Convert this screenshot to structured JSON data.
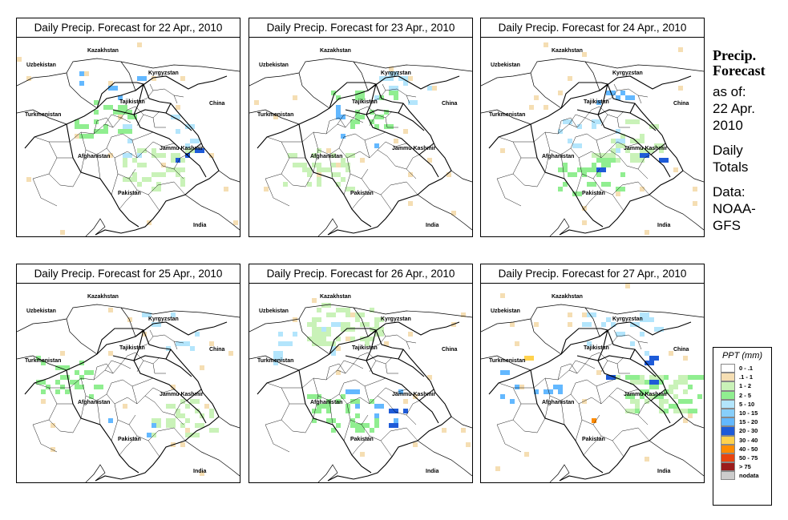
{
  "panels": [
    {
      "title": "Daily Precip. Forecast for  22 Apr., 2010",
      "seed": 11,
      "cells": [
        [
          "#c9f2b8",
          34
        ],
        [
          "#90ee90",
          22
        ],
        [
          "#b3e5fc",
          10
        ],
        [
          "#63b8ff",
          5
        ],
        [
          "#1e5bd8",
          3
        ]
      ]
    },
    {
      "title": "Daily Precip. Forecast for  23 Apr., 2010",
      "seed": 23,
      "cells": [
        [
          "#c9f2b8",
          30
        ],
        [
          "#90ee90",
          20
        ],
        [
          "#b3e5fc",
          10
        ],
        [
          "#63b8ff",
          5
        ]
      ]
    },
    {
      "title": "Daily Precip. Forecast for  24 Apr., 2010",
      "seed": 37,
      "cells": [
        [
          "#c9f2b8",
          28
        ],
        [
          "#90ee90",
          22
        ],
        [
          "#b3e5fc",
          12
        ],
        [
          "#63b8ff",
          5
        ],
        [
          "#1e5bd8",
          3
        ]
      ]
    },
    {
      "title": "Daily Precip. Forecast for  25 Apr., 2010",
      "seed": 41,
      "cells": [
        [
          "#c9f2b8",
          36
        ],
        [
          "#90ee90",
          22
        ],
        [
          "#b3e5fc",
          8
        ],
        [
          "#63b8ff",
          3
        ]
      ]
    },
    {
      "title": "Daily Precip. Forecast for  26 Apr., 2010",
      "seed": 53,
      "cells": [
        [
          "#c9f2b8",
          50
        ],
        [
          "#90ee90",
          32
        ],
        [
          "#b3e5fc",
          14
        ],
        [
          "#63b8ff",
          8
        ],
        [
          "#1e5bd8",
          4
        ]
      ]
    },
    {
      "title": "Daily Precip. Forecast for  27 Apr., 2010",
      "seed": 67,
      "cells": [
        [
          "#c9f2b8",
          34
        ],
        [
          "#90ee90",
          26
        ],
        [
          "#b3e5fc",
          16
        ],
        [
          "#63b8ff",
          8
        ],
        [
          "#1e5bd8",
          5
        ],
        [
          "#ffd24d",
          1
        ],
        [
          "#ff8c00",
          1
        ]
      ]
    }
  ],
  "map_labels": {
    "kazakhstan": "Kazakhstan",
    "uzbekistan": "Uzbekistan",
    "kyrgyzstan": "Kyrgyzstan",
    "tajikistan": "Tajikistan",
    "china": "China",
    "turkmenistan": "Turkmenistan",
    "afghanistan": "Afghanistan",
    "jammu_kashmir": "Jammu Kashmir",
    "pakistan": "Pakistan",
    "india": "India"
  },
  "sidebar": {
    "title_line1": "Precip.",
    "title_line2": "Forecast",
    "asof_1": "as of:",
    "asof_2": "22 Apr.",
    "asof_3": "2010",
    "daily_1": "Daily",
    "daily_2": "Totals",
    "data_1": "Data:",
    "data_2": "NOAA-",
    "data_3": "GFS"
  },
  "legend": {
    "title": "PPT (mm)",
    "items": [
      {
        "label": "0 - .1",
        "color": "#ffffff"
      },
      {
        "label": ".1 - 1",
        "color": "#f5deb3"
      },
      {
        "label": "1 - 2",
        "color": "#c9f2b8"
      },
      {
        "label": "2 - 5",
        "color": "#90ee90"
      },
      {
        "label": "5 - 10",
        "color": "#b3e5fc"
      },
      {
        "label": "10 - 15",
        "color": "#87cefa"
      },
      {
        "label": "15 - 20",
        "color": "#63b8ff"
      },
      {
        "label": "20 - 30",
        "color": "#1e5bd8"
      },
      {
        "label": "30 - 40",
        "color": "#ffd24d"
      },
      {
        "label": "40 - 50",
        "color": "#ff8c00"
      },
      {
        "label": "50 - 75",
        "color": "#e8450f"
      },
      {
        "label": "> 75",
        "color": "#9b1c1c"
      },
      {
        "label": "nodata",
        "color": "#cccccc"
      }
    ]
  }
}
